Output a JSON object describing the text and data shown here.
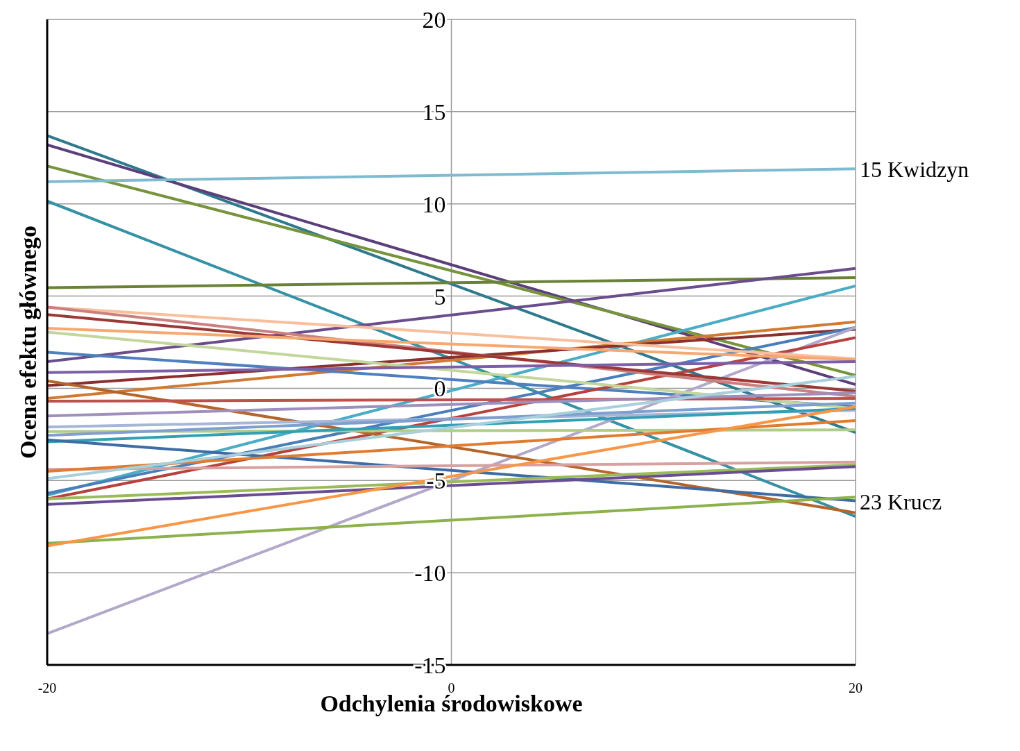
{
  "chart_data": {
    "type": "line",
    "xlabel": "Odchylenia środowiskowe",
    "ylabel": "Ocena efektu głównego",
    "x": [
      -20,
      20
    ],
    "xlim": [
      -20,
      20
    ],
    "xticks": [
      -20,
      0,
      20
    ],
    "ylim": [
      -15,
      20
    ],
    "yticks": [
      -15,
      -10,
      -5,
      0,
      5,
      10,
      15,
      20
    ],
    "grid": true,
    "marker": "none",
    "series": [
      {
        "color": "#2e7a8c",
        "values": [
          13.7,
          -2.4
        ]
      },
      {
        "color": "#5b3f7a",
        "values": [
          13.2,
          0.2
        ]
      },
      {
        "color": "#77933c",
        "values": [
          12.05,
          0.7
        ]
      },
      {
        "name": "15 Kwidzyn",
        "color": "#7fbad0",
        "values": [
          11.2,
          11.9
        ]
      },
      {
        "color": "#3591a5",
        "values": [
          10.15,
          -6.95
        ]
      },
      {
        "color": "#6a8237",
        "values": [
          5.45,
          6.0
        ]
      },
      {
        "color": "#6b4c8c",
        "values": [
          1.45,
          6.5
        ]
      },
      {
        "color": "#4bacc6",
        "values": [
          -5.8,
          5.55
        ]
      },
      {
        "color": "#d07a33",
        "values": [
          -0.55,
          3.6
        ]
      },
      {
        "color": "#8b2f2f",
        "values": [
          0.15,
          3.2
        ]
      },
      {
        "color": "#4a7ebb",
        "values": [
          -5.7,
          3.3
        ]
      },
      {
        "color": "#4f7fbd",
        "values": [
          1.95,
          -1.0
        ]
      },
      {
        "color": "#b3a8c9",
        "values": [
          -13.3,
          3.3
        ]
      },
      {
        "color": "#b8403d",
        "values": [
          -6.0,
          2.75
        ]
      },
      {
        "color": "#f9bf9c",
        "values": [
          4.4,
          1.6
        ]
      },
      {
        "color": "#cc7f7f",
        "values": [
          4.4,
          -0.45
        ]
      },
      {
        "color": "#9c3836",
        "values": [
          4.0,
          -0.15
        ]
      },
      {
        "color": "#f7a870",
        "values": [
          3.25,
          1.55
        ]
      },
      {
        "color": "#c3d69b",
        "values": [
          3.05,
          -1.1
        ]
      },
      {
        "color": "#7d5fa8",
        "values": [
          0.85,
          1.45
        ]
      },
      {
        "color": "#b5652a",
        "values": [
          0.4,
          -6.75
        ]
      },
      {
        "color": "#c0504d",
        "values": [
          -0.7,
          -0.55
        ]
      },
      {
        "color": "#9e8fbd",
        "values": [
          -1.5,
          -0.25
        ]
      },
      {
        "color": "#a5b6d7",
        "values": [
          -2.1,
          -1.2
        ]
      },
      {
        "color": "#b0cc8a",
        "values": [
          -2.35,
          -2.25
        ]
      },
      {
        "color": "#7f9fcf",
        "values": [
          -2.55,
          -0.8
        ]
      },
      {
        "color": "#31a0b5",
        "values": [
          -2.9,
          -1.1
        ]
      },
      {
        "name": "23 Krucz",
        "color": "#3e6ca6",
        "values": [
          -2.8,
          -6.1
        ]
      },
      {
        "color": "#d8a0a0",
        "values": [
          -4.4,
          -4.0
        ]
      },
      {
        "color": "#e07b30",
        "values": [
          -4.5,
          -1.75
        ]
      },
      {
        "color": "#a8cfdc",
        "values": [
          -4.9,
          0.65
        ]
      },
      {
        "color": "#9bbb59",
        "values": [
          -6.0,
          -4.15
        ]
      },
      {
        "color": "#6a4c93",
        "values": [
          -6.3,
          -4.25
        ]
      },
      {
        "color": "#8db14c",
        "values": [
          -8.4,
          -5.9
        ]
      },
      {
        "color": "#f79646",
        "values": [
          -8.55,
          -1.0
        ]
      }
    ]
  }
}
